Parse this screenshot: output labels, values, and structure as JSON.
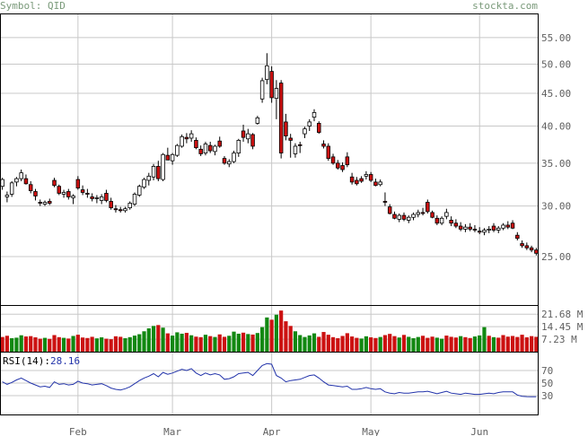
{
  "header": {
    "symbol_label": "Symbol:",
    "symbol": "QID",
    "site": "stockta.com"
  },
  "colors": {
    "up_fill": "#ffffff",
    "down_fill": "#cc1111",
    "vol_up": "#118811",
    "vol_down": "#cc1111",
    "rsi_line": "#2233aa",
    "grid": "#c8c8c8",
    "axis_text": "#606060",
    "header_text": "#7a9a7a"
  },
  "chart_data": [
    {
      "type": "candlestick",
      "title": "",
      "y_ticks": [
        25.0,
        30.0,
        35.0,
        40.0,
        45.0,
        50.0,
        55.0
      ],
      "y_tick_labels": [
        "25.00",
        "30.00",
        "35.00",
        "40.00",
        "45.00",
        "50.00",
        "55.00"
      ],
      "scale": "log",
      "ylim": [
        21,
        60
      ],
      "x_tick_labels": [
        "Feb",
        "Mar",
        "Apr",
        "May",
        "Jun"
      ],
      "x_tick_index": [
        16,
        36,
        57,
        78,
        101
      ],
      "grid": true,
      "ohlc": [
        [
          32.2,
          33.2,
          31.8,
          33.0
        ],
        [
          31.0,
          31.6,
          30.4,
          31.2
        ],
        [
          31.3,
          32.8,
          31.0,
          32.6
        ],
        [
          32.7,
          33.3,
          32.2,
          33.1
        ],
        [
          33.1,
          34.2,
          32.8,
          33.8
        ],
        [
          33.1,
          33.6,
          32.4,
          32.5
        ],
        [
          32.4,
          32.8,
          31.4,
          31.7
        ],
        [
          31.6,
          31.9,
          30.6,
          31.1
        ],
        [
          30.4,
          30.7,
          30.0,
          30.3
        ],
        [
          30.2,
          30.6,
          30.0,
          30.4
        ],
        [
          30.5,
          30.8,
          30.1,
          30.3
        ],
        [
          32.9,
          33.2,
          32.1,
          32.3
        ],
        [
          32.2,
          32.4,
          31.2,
          31.4
        ],
        [
          31.3,
          31.8,
          30.9,
          31.5
        ],
        [
          31.6,
          31.9,
          30.7,
          31.0
        ],
        [
          30.9,
          31.3,
          30.2,
          31.1
        ],
        [
          33.0,
          33.4,
          31.8,
          32.0
        ],
        [
          31.8,
          32.3,
          31.2,
          31.5
        ],
        [
          31.4,
          31.9,
          30.9,
          31.3
        ],
        [
          31.0,
          31.4,
          30.5,
          30.8
        ],
        [
          30.8,
          31.2,
          30.3,
          30.9
        ],
        [
          30.6,
          31.3,
          30.2,
          31.0
        ],
        [
          31.4,
          31.8,
          30.4,
          30.6
        ],
        [
          30.5,
          30.9,
          29.6,
          29.8
        ],
        [
          29.7,
          30.1,
          29.3,
          29.6
        ],
        [
          29.6,
          29.9,
          29.3,
          29.5
        ],
        [
          29.5,
          29.9,
          29.3,
          29.7
        ],
        [
          29.8,
          30.5,
          29.6,
          30.3
        ],
        [
          30.2,
          31.5,
          30.0,
          31.3
        ],
        [
          31.2,
          32.4,
          31.0,
          32.2
        ],
        [
          32.1,
          33.2,
          31.9,
          33.0
        ],
        [
          32.9,
          33.8,
          32.3,
          33.4
        ],
        [
          33.3,
          34.9,
          32.9,
          34.6
        ],
        [
          34.6,
          35.3,
          32.8,
          33.1
        ],
        [
          33.0,
          36.3,
          32.8,
          36.1
        ],
        [
          36.0,
          37.0,
          35.4,
          35.4
        ],
        [
          35.3,
          36.3,
          34.8,
          36.1
        ],
        [
          36.0,
          37.5,
          35.8,
          37.3
        ],
        [
          37.2,
          38.8,
          37.0,
          38.5
        ],
        [
          38.4,
          39.0,
          37.6,
          38.2
        ],
        [
          38.3,
          39.4,
          37.8,
          38.9
        ],
        [
          38.0,
          38.4,
          36.8,
          37.0
        ],
        [
          36.8,
          37.3,
          35.9,
          36.2
        ],
        [
          36.3,
          37.8,
          36.0,
          37.5
        ],
        [
          37.3,
          37.8,
          36.3,
          36.6
        ],
        [
          36.5,
          37.4,
          36.0,
          37.2
        ],
        [
          37.9,
          38.5,
          37.0,
          37.2
        ],
        [
          35.6,
          35.9,
          34.8,
          35.0
        ],
        [
          34.9,
          35.5,
          34.5,
          35.2
        ],
        [
          35.2,
          36.6,
          35.0,
          36.3
        ],
        [
          36.3,
          38.2,
          35.8,
          38.0
        ],
        [
          39.3,
          40.2,
          37.8,
          38.4
        ],
        [
          38.2,
          39.6,
          37.6,
          38.9
        ],
        [
          38.8,
          39.0,
          36.8,
          37.2
        ],
        [
          40.4,
          41.5,
          40.2,
          41.2
        ],
        [
          44.1,
          47.6,
          43.5,
          47.1
        ],
        [
          47.3,
          52.0,
          46.5,
          49.7
        ],
        [
          48.7,
          49.6,
          43.5,
          44.3
        ],
        [
          44.2,
          47.2,
          41.0,
          45.8
        ],
        [
          46.7,
          47.2,
          35.6,
          36.3
        ],
        [
          40.6,
          41.8,
          38.0,
          38.6
        ],
        [
          38.3,
          38.9,
          35.7,
          38.0
        ],
        [
          36.2,
          37.6,
          35.7,
          37.2
        ],
        [
          37.4,
          37.8,
          36.3,
          37.3
        ],
        [
          38.9,
          39.9,
          38.3,
          39.6
        ],
        [
          40.0,
          41.0,
          39.3,
          40.6
        ],
        [
          41.3,
          42.5,
          40.7,
          42.0
        ],
        [
          40.4,
          40.7,
          38.9,
          39.1
        ],
        [
          37.5,
          38.0,
          36.9,
          37.2
        ],
        [
          37.2,
          37.6,
          35.3,
          35.6
        ],
        [
          35.8,
          36.2,
          34.8,
          35.0
        ],
        [
          35.0,
          35.4,
          34.2,
          34.4
        ],
        [
          34.7,
          35.1,
          33.9,
          34.2
        ],
        [
          35.8,
          36.4,
          34.5,
          34.8
        ],
        [
          33.3,
          33.8,
          32.4,
          32.7
        ],
        [
          32.9,
          33.3,
          32.3,
          32.5
        ],
        [
          33.1,
          33.4,
          32.6,
          32.8
        ],
        [
          33.4,
          34.0,
          33.0,
          33.6
        ],
        [
          33.6,
          33.9,
          32.7,
          32.9
        ],
        [
          32.7,
          33.1,
          32.2,
          32.3
        ],
        [
          32.4,
          33.0,
          32.2,
          32.7
        ],
        [
          30.5,
          31.5,
          30.0,
          30.4
        ],
        [
          29.9,
          30.2,
          29.1,
          29.2
        ],
        [
          29.1,
          29.4,
          28.6,
          28.7
        ],
        [
          28.6,
          29.2,
          28.3,
          29.0
        ],
        [
          29.0,
          29.3,
          28.4,
          28.6
        ],
        [
          28.5,
          29.0,
          28.2,
          28.8
        ],
        [
          28.8,
          29.3,
          28.5,
          29.1
        ],
        [
          29.1,
          29.6,
          28.8,
          29.3
        ],
        [
          29.3,
          29.8,
          29.0,
          29.2
        ],
        [
          30.4,
          30.7,
          29.2,
          29.4
        ],
        [
          29.3,
          29.5,
          28.7,
          28.8
        ],
        [
          28.7,
          29.0,
          28.0,
          28.2
        ],
        [
          28.2,
          28.9,
          28.0,
          28.7
        ],
        [
          28.9,
          29.7,
          28.6,
          29.3
        ],
        [
          28.5,
          28.9,
          27.9,
          28.2
        ],
        [
          28.2,
          28.6,
          27.7,
          27.9
        ],
        [
          27.9,
          28.3,
          27.4,
          27.6
        ],
        [
          27.6,
          28.1,
          27.3,
          27.8
        ],
        [
          27.8,
          28.2,
          27.4,
          27.6
        ],
        [
          27.6,
          28.0,
          27.3,
          27.5
        ],
        [
          27.4,
          27.8,
          27.1,
          27.3
        ],
        [
          27.3,
          27.7,
          27.0,
          27.5
        ],
        [
          27.5,
          27.9,
          27.2,
          27.6
        ],
        [
          27.9,
          28.2,
          27.3,
          27.5
        ],
        [
          27.5,
          27.9,
          27.2,
          27.7
        ],
        [
          27.7,
          28.2,
          27.5,
          28.0
        ],
        [
          28.0,
          28.4,
          27.6,
          27.8
        ],
        [
          28.2,
          28.5,
          27.6,
          27.7
        ],
        [
          27.0,
          27.3,
          26.5,
          26.7
        ],
        [
          26.2,
          26.5,
          25.8,
          26.0
        ],
        [
          26.0,
          26.3,
          25.6,
          25.8
        ],
        [
          25.8,
          26.0,
          25.4,
          25.6
        ],
        [
          25.6,
          25.8,
          25.1,
          25.3
        ]
      ]
    },
    {
      "type": "bar",
      "title": "",
      "y_tick_labels": [
        "21.68 M",
        "14.45 M",
        "7.23 M"
      ],
      "y_ticks": [
        21.68,
        14.45,
        7.23
      ],
      "ylim": [
        0,
        27
      ],
      "values": [
        8.5,
        9.2,
        7.8,
        8.1,
        9.5,
        8.8,
        9.0,
        8.3,
        7.5,
        8.0,
        7.4,
        9.6,
        8.4,
        8.0,
        7.6,
        9.1,
        9.8,
        8.2,
        7.9,
        8.6,
        7.7,
        8.3,
        7.5,
        7.2,
        8.9,
        8.6,
        7.8,
        8.4,
        9.3,
        10.1,
        11.8,
        13.5,
        14.9,
        15.4,
        13.9,
        10.6,
        9.3,
        11.2,
        10.4,
        10.9,
        9.5,
        8.7,
        8.4,
        9.8,
        9.0,
        8.5,
        10.0,
        8.6,
        9.2,
        11.6,
        10.4,
        11.0,
        10.2,
        9.9,
        10.8,
        14.2,
        19.8,
        18.5,
        21.4,
        23.8,
        17.6,
        14.9,
        11.8,
        9.6,
        8.5,
        9.4,
        10.6,
        8.6,
        11.4,
        9.8,
        8.4,
        7.8,
        9.1,
        10.7,
        8.8,
        8.0,
        7.6,
        8.9,
        8.3,
        7.9,
        8.5,
        9.6,
        10.3,
        9.0,
        8.2,
        9.7,
        8.6,
        7.8,
        8.5,
        9.2,
        8.0,
        8.7,
        8.1,
        7.5,
        9.3,
        8.6,
        8.2,
        9.0,
        8.4,
        7.9,
        8.8,
        9.4,
        14.2,
        9.2,
        8.4,
        8.1,
        9.6,
        8.7,
        9.1,
        8.5,
        9.8,
        8.3,
        9.0,
        8.6
      ],
      "up": [
        false,
        false,
        true,
        true,
        true,
        false,
        false,
        false,
        false,
        true,
        false,
        false,
        false,
        true,
        false,
        true,
        false,
        false,
        false,
        false,
        true,
        true,
        false,
        false,
        false,
        false,
        true,
        true,
        true,
        true,
        true,
        true,
        true,
        false,
        true,
        false,
        true,
        true,
        true,
        false,
        true,
        false,
        false,
        true,
        false,
        true,
        false,
        false,
        true,
        true,
        true,
        false,
        true,
        false,
        true,
        true,
        true,
        false,
        true,
        false,
        false,
        false,
        true,
        true,
        true,
        true,
        true,
        false,
        false,
        false,
        false,
        false,
        false,
        false,
        false,
        false,
        true,
        true,
        false,
        false,
        true,
        false,
        false,
        false,
        true,
        false,
        true,
        true,
        true,
        false,
        false,
        false,
        true,
        true,
        false,
        false,
        false,
        true,
        false,
        false,
        true,
        true,
        true,
        false,
        true,
        false,
        false,
        false,
        false,
        false,
        false,
        false
      ]
    },
    {
      "type": "line",
      "title": "",
      "label": "RSI(14):",
      "value_label": "28.16",
      "y_ticks": [
        70,
        50,
        30
      ],
      "y_tick_labels": [
        "70",
        "50",
        "30"
      ],
      "ylim": [
        0,
        100
      ],
      "values": [
        52,
        48,
        51,
        55,
        58,
        54,
        50,
        47,
        44,
        45,
        43,
        52,
        48,
        49,
        47,
        48,
        53,
        50,
        49,
        47,
        48,
        49,
        46,
        42,
        40,
        39,
        41,
        44,
        49,
        54,
        58,
        61,
        65,
        60,
        67,
        64,
        66,
        69,
        72,
        70,
        73,
        66,
        62,
        66,
        63,
        65,
        63,
        56,
        57,
        60,
        65,
        66,
        67,
        62,
        70,
        78,
        81,
        80,
        62,
        58,
        52,
        54,
        55,
        56,
        59,
        62,
        63,
        58,
        52,
        47,
        46,
        45,
        44,
        45,
        40,
        40,
        41,
        43,
        41,
        40,
        41,
        36,
        34,
        33,
        35,
        34,
        34,
        35,
        36,
        36,
        37,
        35,
        33,
        35,
        37,
        34,
        33,
        32,
        34,
        33,
        32,
        32,
        33,
        34,
        33,
        35,
        36,
        36,
        36,
        31,
        29,
        28.5,
        28.3,
        28.16
      ]
    }
  ]
}
